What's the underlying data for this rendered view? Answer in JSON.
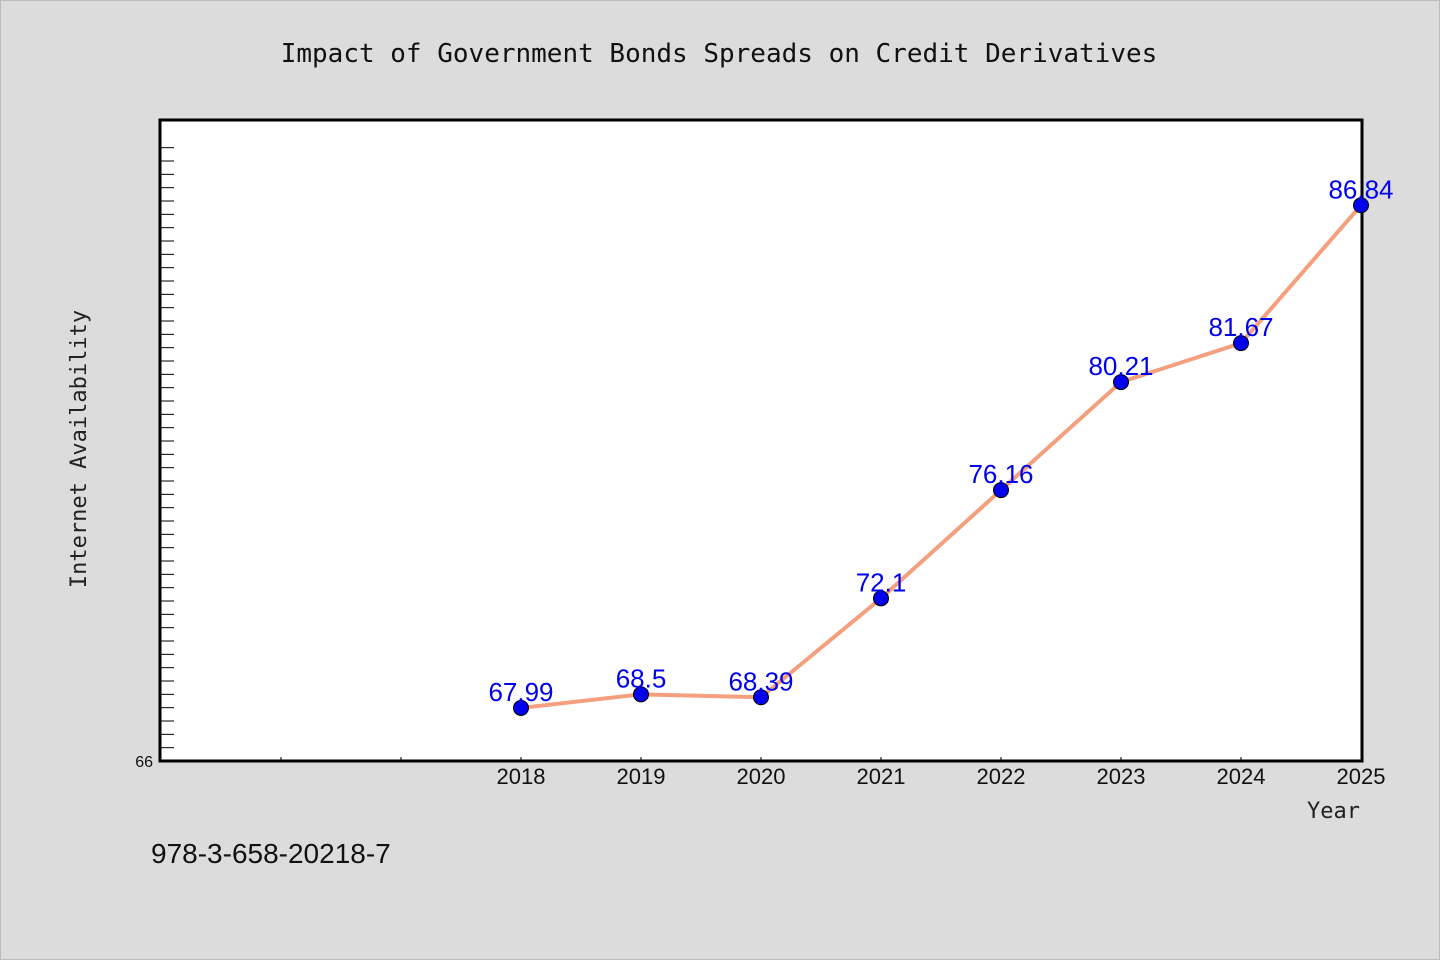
{
  "chart_data": {
    "type": "line",
    "title": "Impact of Government Bonds Spreads on Credit Derivatives",
    "xlabel": "Year",
    "ylabel": "Internet Availability",
    "categories": [
      "2018",
      "2019",
      "2020",
      "2021",
      "2022",
      "2023",
      "2024",
      "2025"
    ],
    "series": [
      {
        "values": [
          67.99,
          68.5,
          68.39,
          72.1,
          76.16,
          80.21,
          81.67,
          86.84
        ],
        "labels": [
          "67.99",
          "68.5",
          "68.39",
          "72.1",
          "76.16",
          "80.21",
          "81.67",
          "86.84"
        ]
      }
    ],
    "ylim": [
      66,
      90
    ],
    "y_tick_label": "66",
    "x_slots": 10,
    "grid": false,
    "legend": "none",
    "colors": {
      "line": "#f4a07e",
      "marker": "#0000ee",
      "label": "#0000ee",
      "background": "#dcdcdc",
      "plot_background": "#ffffff"
    }
  },
  "footer": {
    "text": "978-3-658-20218-7"
  }
}
